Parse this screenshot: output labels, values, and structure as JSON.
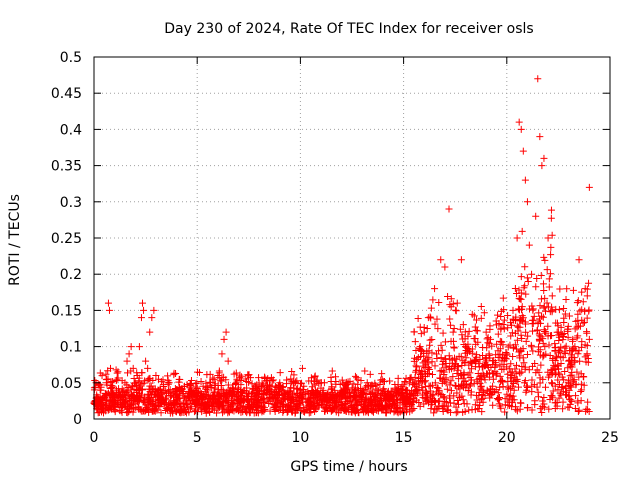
{
  "chart_data": {
    "type": "scatter",
    "title": "Day 230 of 2024, Rate Of TEC Index for receiver osls",
    "xlabel": "GPS time / hours",
    "ylabel": "ROTI / TECUs",
    "xlim": [
      0,
      25
    ],
    "ylim": [
      0,
      0.5
    ],
    "xticks": [
      0,
      5,
      10,
      15,
      20,
      25
    ],
    "xtick_labels": [
      "0",
      "5",
      "10",
      "15",
      "20",
      "25"
    ],
    "yticks": [
      0,
      0.05,
      0.1,
      0.15,
      0.2,
      0.25,
      0.3,
      0.35,
      0.4,
      0.45,
      0.5
    ],
    "ytick_labels": [
      "0",
      "0.05",
      "0.1",
      "0.15",
      "0.2",
      "0.25",
      "0.3",
      "0.35",
      "0.4",
      "0.45",
      "0.5"
    ],
    "grid": true,
    "marker": "+",
    "color": "#ff0000",
    "series": [
      {
        "name": "ROTI",
        "description_points": "representative samples of a dense scatter",
        "x": [
          0.05,
          0.1,
          0.2,
          0.3,
          0.4,
          0.5,
          0.6,
          0.7,
          0.75,
          0.8,
          0.9,
          1.0,
          1.2,
          1.4,
          1.5,
          1.6,
          1.7,
          1.8,
          1.9,
          2.0,
          2.1,
          2.2,
          2.3,
          2.35,
          2.4,
          2.5,
          2.6,
          2.7,
          2.8,
          2.9,
          3.0,
          3.1,
          3.2,
          3.5,
          4.0,
          4.5,
          5.0,
          5.5,
          6.0,
          6.2,
          6.3,
          6.4,
          6.5,
          6.6,
          7.0,
          7.5,
          8.0,
          8.5,
          9.0,
          9.5,
          10.0,
          10.1,
          10.5,
          11.0,
          11.5,
          12.0,
          12.5,
          13.0,
          13.5,
          14.0,
          14.5,
          15.0,
          15.5,
          15.8,
          16.0,
          16.2,
          16.5,
          16.8,
          17.0,
          17.2,
          17.4,
          17.6,
          17.8,
          18.0,
          18.5,
          19.0,
          19.5,
          20.0,
          20.3,
          20.5,
          20.6,
          20.7,
          20.8,
          20.9,
          21.0,
          21.2,
          21.4,
          21.5,
          21.6,
          21.7,
          21.8,
          22.0,
          22.2,
          22.5,
          23.0,
          23.3,
          23.5,
          23.8,
          23.9,
          24.0
        ],
        "y": [
          0.02,
          0.05,
          0.03,
          0.04,
          0.02,
          0.03,
          0.05,
          0.16,
          0.15,
          0.07,
          0.03,
          0.02,
          0.03,
          0.02,
          0.05,
          0.08,
          0.09,
          0.1,
          0.07,
          0.05,
          0.06,
          0.1,
          0.14,
          0.16,
          0.15,
          0.08,
          0.07,
          0.12,
          0.14,
          0.15,
          0.06,
          0.04,
          0.03,
          0.02,
          0.03,
          0.02,
          0.03,
          0.04,
          0.06,
          0.09,
          0.11,
          0.12,
          0.08,
          0.04,
          0.03,
          0.02,
          0.04,
          0.03,
          0.05,
          0.03,
          0.04,
          0.07,
          0.03,
          0.05,
          0.03,
          0.02,
          0.04,
          0.03,
          0.02,
          0.04,
          0.02,
          0.03,
          0.05,
          0.1,
          0.12,
          0.14,
          0.18,
          0.22,
          0.21,
          0.29,
          0.12,
          0.16,
          0.22,
          0.1,
          0.08,
          0.12,
          0.13,
          0.09,
          0.15,
          0.25,
          0.41,
          0.4,
          0.37,
          0.33,
          0.3,
          0.2,
          0.28,
          0.47,
          0.39,
          0.35,
          0.36,
          0.25,
          0.15,
          0.12,
          0.08,
          0.1,
          0.22,
          0.18,
          0.17,
          0.32
        ]
      }
    ]
  }
}
